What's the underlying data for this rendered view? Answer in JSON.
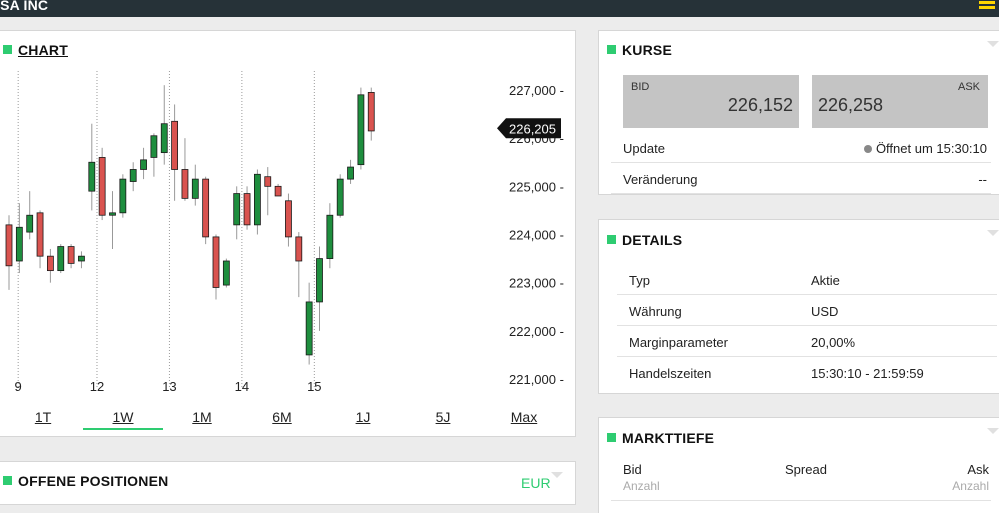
{
  "header": {
    "title": "ISA INC"
  },
  "colors": {
    "accent": "#2ecc71",
    "up": "#1e8e3e",
    "down": "#d9534f",
    "topbar": "#263238",
    "menu": "#ffd600"
  },
  "chart_panel": {
    "title": "CHART",
    "timeframes": [
      "1T",
      "1W",
      "1M",
      "6M",
      "1J",
      "5J",
      "Max"
    ],
    "active_timeframe": "1W"
  },
  "chart_data": {
    "type": "candlestick",
    "x_tick_labels": [
      "9",
      "12",
      "13",
      "14",
      "15"
    ],
    "y_tick_labels": [
      "227,000 -",
      "226,000 -",
      "225,000 -",
      "224,000 -",
      "223,000 -",
      "222,000 -",
      "221,000 -"
    ],
    "y_ticks": [
      227000,
      226000,
      225000,
      224000,
      223000,
      222000,
      221000
    ],
    "ylim": [
      220800,
      227400
    ],
    "current_price_label": "226,205",
    "current_price": 226205,
    "session_breaks_after_index": [
      0,
      8,
      15,
      22,
      29
    ],
    "candles": [
      {
        "o": 224200,
        "h": 224400,
        "l": 222850,
        "c": 223350
      },
      {
        "o": 223450,
        "h": 224650,
        "l": 223200,
        "c": 224150
      },
      {
        "o": 224050,
        "h": 224900,
        "l": 223900,
        "c": 224400
      },
      {
        "o": 224450,
        "h": 224500,
        "l": 223300,
        "c": 223550
      },
      {
        "o": 223550,
        "h": 223700,
        "l": 223000,
        "c": 223250
      },
      {
        "o": 223250,
        "h": 223800,
        "l": 223200,
        "c": 223750
      },
      {
        "o": 223750,
        "h": 223800,
        "l": 223300,
        "c": 223400
      },
      {
        "o": 223450,
        "h": 223650,
        "l": 223300,
        "c": 223550
      },
      {
        "o": 224900,
        "h": 226300,
        "l": 224500,
        "c": 225500
      },
      {
        "o": 225600,
        "h": 225800,
        "l": 224300,
        "c": 224400
      },
      {
        "o": 224400,
        "h": 224900,
        "l": 223700,
        "c": 224450
      },
      {
        "o": 224450,
        "h": 225250,
        "l": 224350,
        "c": 225150
      },
      {
        "o": 225100,
        "h": 225500,
        "l": 224900,
        "c": 225350
      },
      {
        "o": 225350,
        "h": 225800,
        "l": 225150,
        "c": 225550
      },
      {
        "o": 225600,
        "h": 226100,
        "l": 225200,
        "c": 226050
      },
      {
        "o": 225700,
        "h": 227100,
        "l": 225450,
        "c": 226300
      },
      {
        "o": 226350,
        "h": 226700,
        "l": 224700,
        "c": 225350
      },
      {
        "o": 225350,
        "h": 226000,
        "l": 224700,
        "c": 224750
      },
      {
        "o": 224750,
        "h": 225450,
        "l": 224600,
        "c": 225150
      },
      {
        "o": 225150,
        "h": 225200,
        "l": 223800,
        "c": 223950
      },
      {
        "o": 223950,
        "h": 224000,
        "l": 222650,
        "c": 222900
      },
      {
        "o": 222950,
        "h": 223500,
        "l": 222900,
        "c": 223450
      },
      {
        "o": 224200,
        "h": 225000,
        "l": 223900,
        "c": 224850
      },
      {
        "o": 224850,
        "h": 225000,
        "l": 224100,
        "c": 224200
      },
      {
        "o": 224200,
        "h": 225350,
        "l": 224000,
        "c": 225250
      },
      {
        "o": 225200,
        "h": 225400,
        "l": 224400,
        "c": 225000
      },
      {
        "o": 225000,
        "h": 225050,
        "l": 224800,
        "c": 224800
      },
      {
        "o": 224700,
        "h": 224850,
        "l": 223750,
        "c": 223950
      },
      {
        "o": 223950,
        "h": 224050,
        "l": 222700,
        "c": 223450
      },
      {
        "o": 221500,
        "h": 223000,
        "l": 221300,
        "c": 222600
      },
      {
        "o": 222600,
        "h": 223750,
        "l": 222000,
        "c": 223500
      },
      {
        "o": 223500,
        "h": 224650,
        "l": 223300,
        "c": 224400
      },
      {
        "o": 224400,
        "h": 225250,
        "l": 224350,
        "c": 225150
      },
      {
        "o": 225150,
        "h": 225550,
        "l": 225050,
        "c": 225400
      },
      {
        "o": 225450,
        "h": 227050,
        "l": 225350,
        "c": 226900
      },
      {
        "o": 226950,
        "h": 227050,
        "l": 225950,
        "c": 226150
      }
    ]
  },
  "positions_panel": {
    "title": "OFFENE POSITIONEN",
    "currency": "EUR"
  },
  "kurse_panel": {
    "title": "KURSE",
    "bid_label": "BID",
    "bid_value": "226,152",
    "ask_label": "ASK",
    "ask_value": "226,258",
    "rows": [
      {
        "label": "Update",
        "value": "Öffnet um 15:30:10"
      },
      {
        "label": "Veränderung",
        "value": "--"
      }
    ]
  },
  "details_panel": {
    "title": "DETAILS",
    "rows": [
      {
        "label": "Typ",
        "value": "Aktie"
      },
      {
        "label": "Währung",
        "value": "USD"
      },
      {
        "label": "Marginparameter",
        "value": "20,00%"
      },
      {
        "label": "Handelszeiten",
        "value": "15:30:10 - 21:59:59"
      }
    ]
  },
  "markttiefe_panel": {
    "title": "MARKTTIEFE",
    "col_bid": "Bid",
    "col_spread": "Spread",
    "col_ask": "Ask",
    "sub_bid": "Anzahl",
    "sub_ask": "Anzahl"
  }
}
